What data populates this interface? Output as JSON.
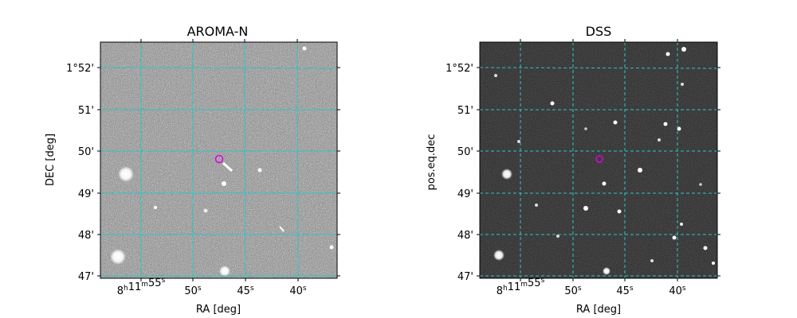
{
  "panels": [
    {
      "title": "AROMA-N",
      "xlabel": "RA [deg]",
      "ylabel": "DEC [deg]",
      "x_ticks": [
        "8h11m55s",
        "50s",
        "45s",
        "40s"
      ],
      "y_ticks": [
        "1°52'",
        "51'",
        "50'",
        "49'",
        "48'",
        "47'"
      ],
      "grid_color": "#2ec4c4",
      "grid_style": "solid",
      "marker_color": "#e000e0"
    },
    {
      "title": "DSS",
      "xlabel": "RA [deg]",
      "ylabel": "pos.eq.dec",
      "x_ticks": [
        "8h11m55s",
        "50s",
        "45s",
        "40s"
      ],
      "y_ticks": [
        "1°52'",
        "51'",
        "50'",
        "49'",
        "48'",
        "47'"
      ],
      "grid_color": "#2ec4c4",
      "grid_style": "dashed",
      "marker_color": "#e000e0"
    }
  ]
}
